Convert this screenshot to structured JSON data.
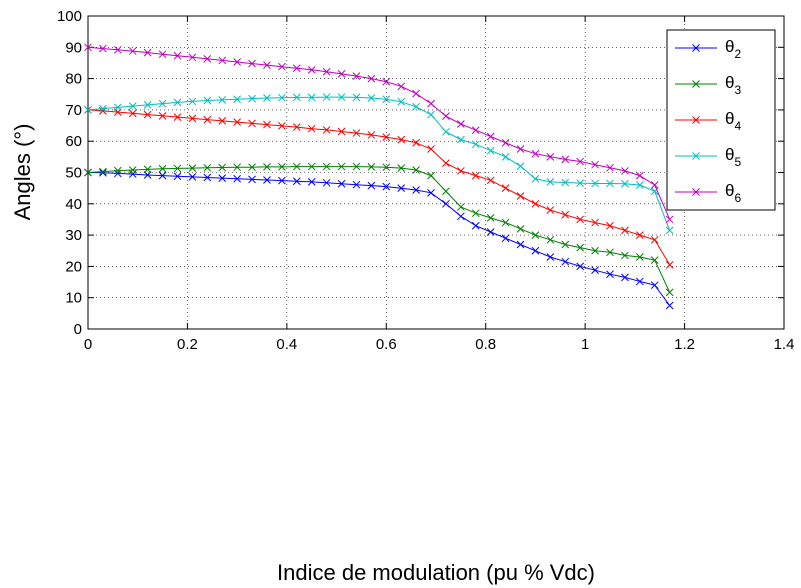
{
  "chart_data": {
    "type": "line",
    "xlabel": "Indice de modulation (pu % Vdc)",
    "ylabel": "Angles (°)",
    "x": [
      0,
      0.03,
      0.06,
      0.09,
      0.12,
      0.15,
      0.18,
      0.21,
      0.24,
      0.27,
      0.3,
      0.33,
      0.36,
      0.39,
      0.42,
      0.45,
      0.48,
      0.51,
      0.54,
      0.57,
      0.6,
      0.63,
      0.66,
      0.69,
      0.72,
      0.75,
      0.78,
      0.81,
      0.84,
      0.87,
      0.9,
      0.93,
      0.96,
      0.99,
      1.02,
      1.05,
      1.08,
      1.11,
      1.14,
      1.17
    ],
    "series": [
      {
        "name": "θ2",
        "color": "#0000ff",
        "values": [
          50,
          49.9,
          49.7,
          49.5,
          49.2,
          49,
          48.8,
          48.6,
          48.4,
          48.2,
          48,
          47.8,
          47.6,
          47.4,
          47.2,
          47,
          46.7,
          46.4,
          46.1,
          45.8,
          45.5,
          45,
          44.4,
          43.5,
          40,
          36,
          33,
          31,
          29,
          27,
          25,
          23,
          21.5,
          20,
          18.8,
          17.5,
          16.5,
          15.2,
          14,
          7.5
        ]
      },
      {
        "name": "θ3",
        "color": "#008000",
        "values": [
          50,
          50.3,
          50.6,
          50.8,
          51,
          51.2,
          51.3,
          51.4,
          51.5,
          51.6,
          51.7,
          51.7,
          51.8,
          51.8,
          51.9,
          51.9,
          51.9,
          51.9,
          51.9,
          51.8,
          51.7,
          51.4,
          50.8,
          49,
          44,
          39,
          37,
          35.5,
          34,
          32,
          30,
          28.5,
          27,
          26,
          25,
          24.5,
          23.5,
          23,
          22,
          11.7
        ]
      },
      {
        "name": "θ4",
        "color": "#ff0000",
        "values": [
          70,
          69.7,
          69.3,
          68.9,
          68.5,
          68.1,
          67.7,
          67.3,
          66.9,
          66.5,
          66.1,
          65.7,
          65.3,
          64.9,
          64.5,
          64,
          63.6,
          63.1,
          62.6,
          62,
          61.3,
          60.5,
          59.5,
          57.5,
          53,
          50.5,
          49,
          47.5,
          45,
          42.5,
          40,
          38,
          36.5,
          35,
          34,
          33,
          31.5,
          30,
          28.5,
          20.5
        ]
      },
      {
        "name": "θ5",
        "color": "#00bfbf",
        "values": [
          70,
          70.4,
          70.8,
          71.2,
          71.6,
          72,
          72.4,
          72.7,
          73,
          73.2,
          73.4,
          73.6,
          73.8,
          73.9,
          74,
          74,
          74.1,
          74.1,
          74,
          73.8,
          73.4,
          72.6,
          71,
          68.5,
          63,
          60.5,
          59,
          57,
          55,
          52,
          48,
          47,
          46.8,
          46.6,
          46.5,
          46.5,
          46.4,
          46,
          44,
          31.5
        ]
      },
      {
        "name": "θ6",
        "color": "#bf00bf",
        "values": [
          90,
          89.6,
          89.2,
          88.8,
          88.3,
          87.8,
          87.3,
          86.8,
          86.3,
          85.8,
          85.3,
          84.8,
          84.3,
          83.8,
          83.3,
          82.8,
          82.2,
          81.5,
          80.8,
          80,
          79,
          77.5,
          75.2,
          72,
          68,
          65.5,
          63.5,
          61.5,
          59.5,
          57.5,
          56,
          55,
          54.2,
          53.5,
          52.5,
          51.5,
          50.5,
          49,
          46,
          35
        ]
      }
    ],
    "xlim": [
      0,
      1.4
    ],
    "xticks": [
      0,
      0.2,
      0.4,
      0.6,
      0.8,
      1,
      1.2,
      1.4
    ],
    "ylim": [
      0,
      100
    ],
    "yticks": [
      0,
      10,
      20,
      30,
      40,
      50,
      60,
      70,
      80,
      90,
      100
    ],
    "grid": true,
    "legend": "upper right"
  }
}
